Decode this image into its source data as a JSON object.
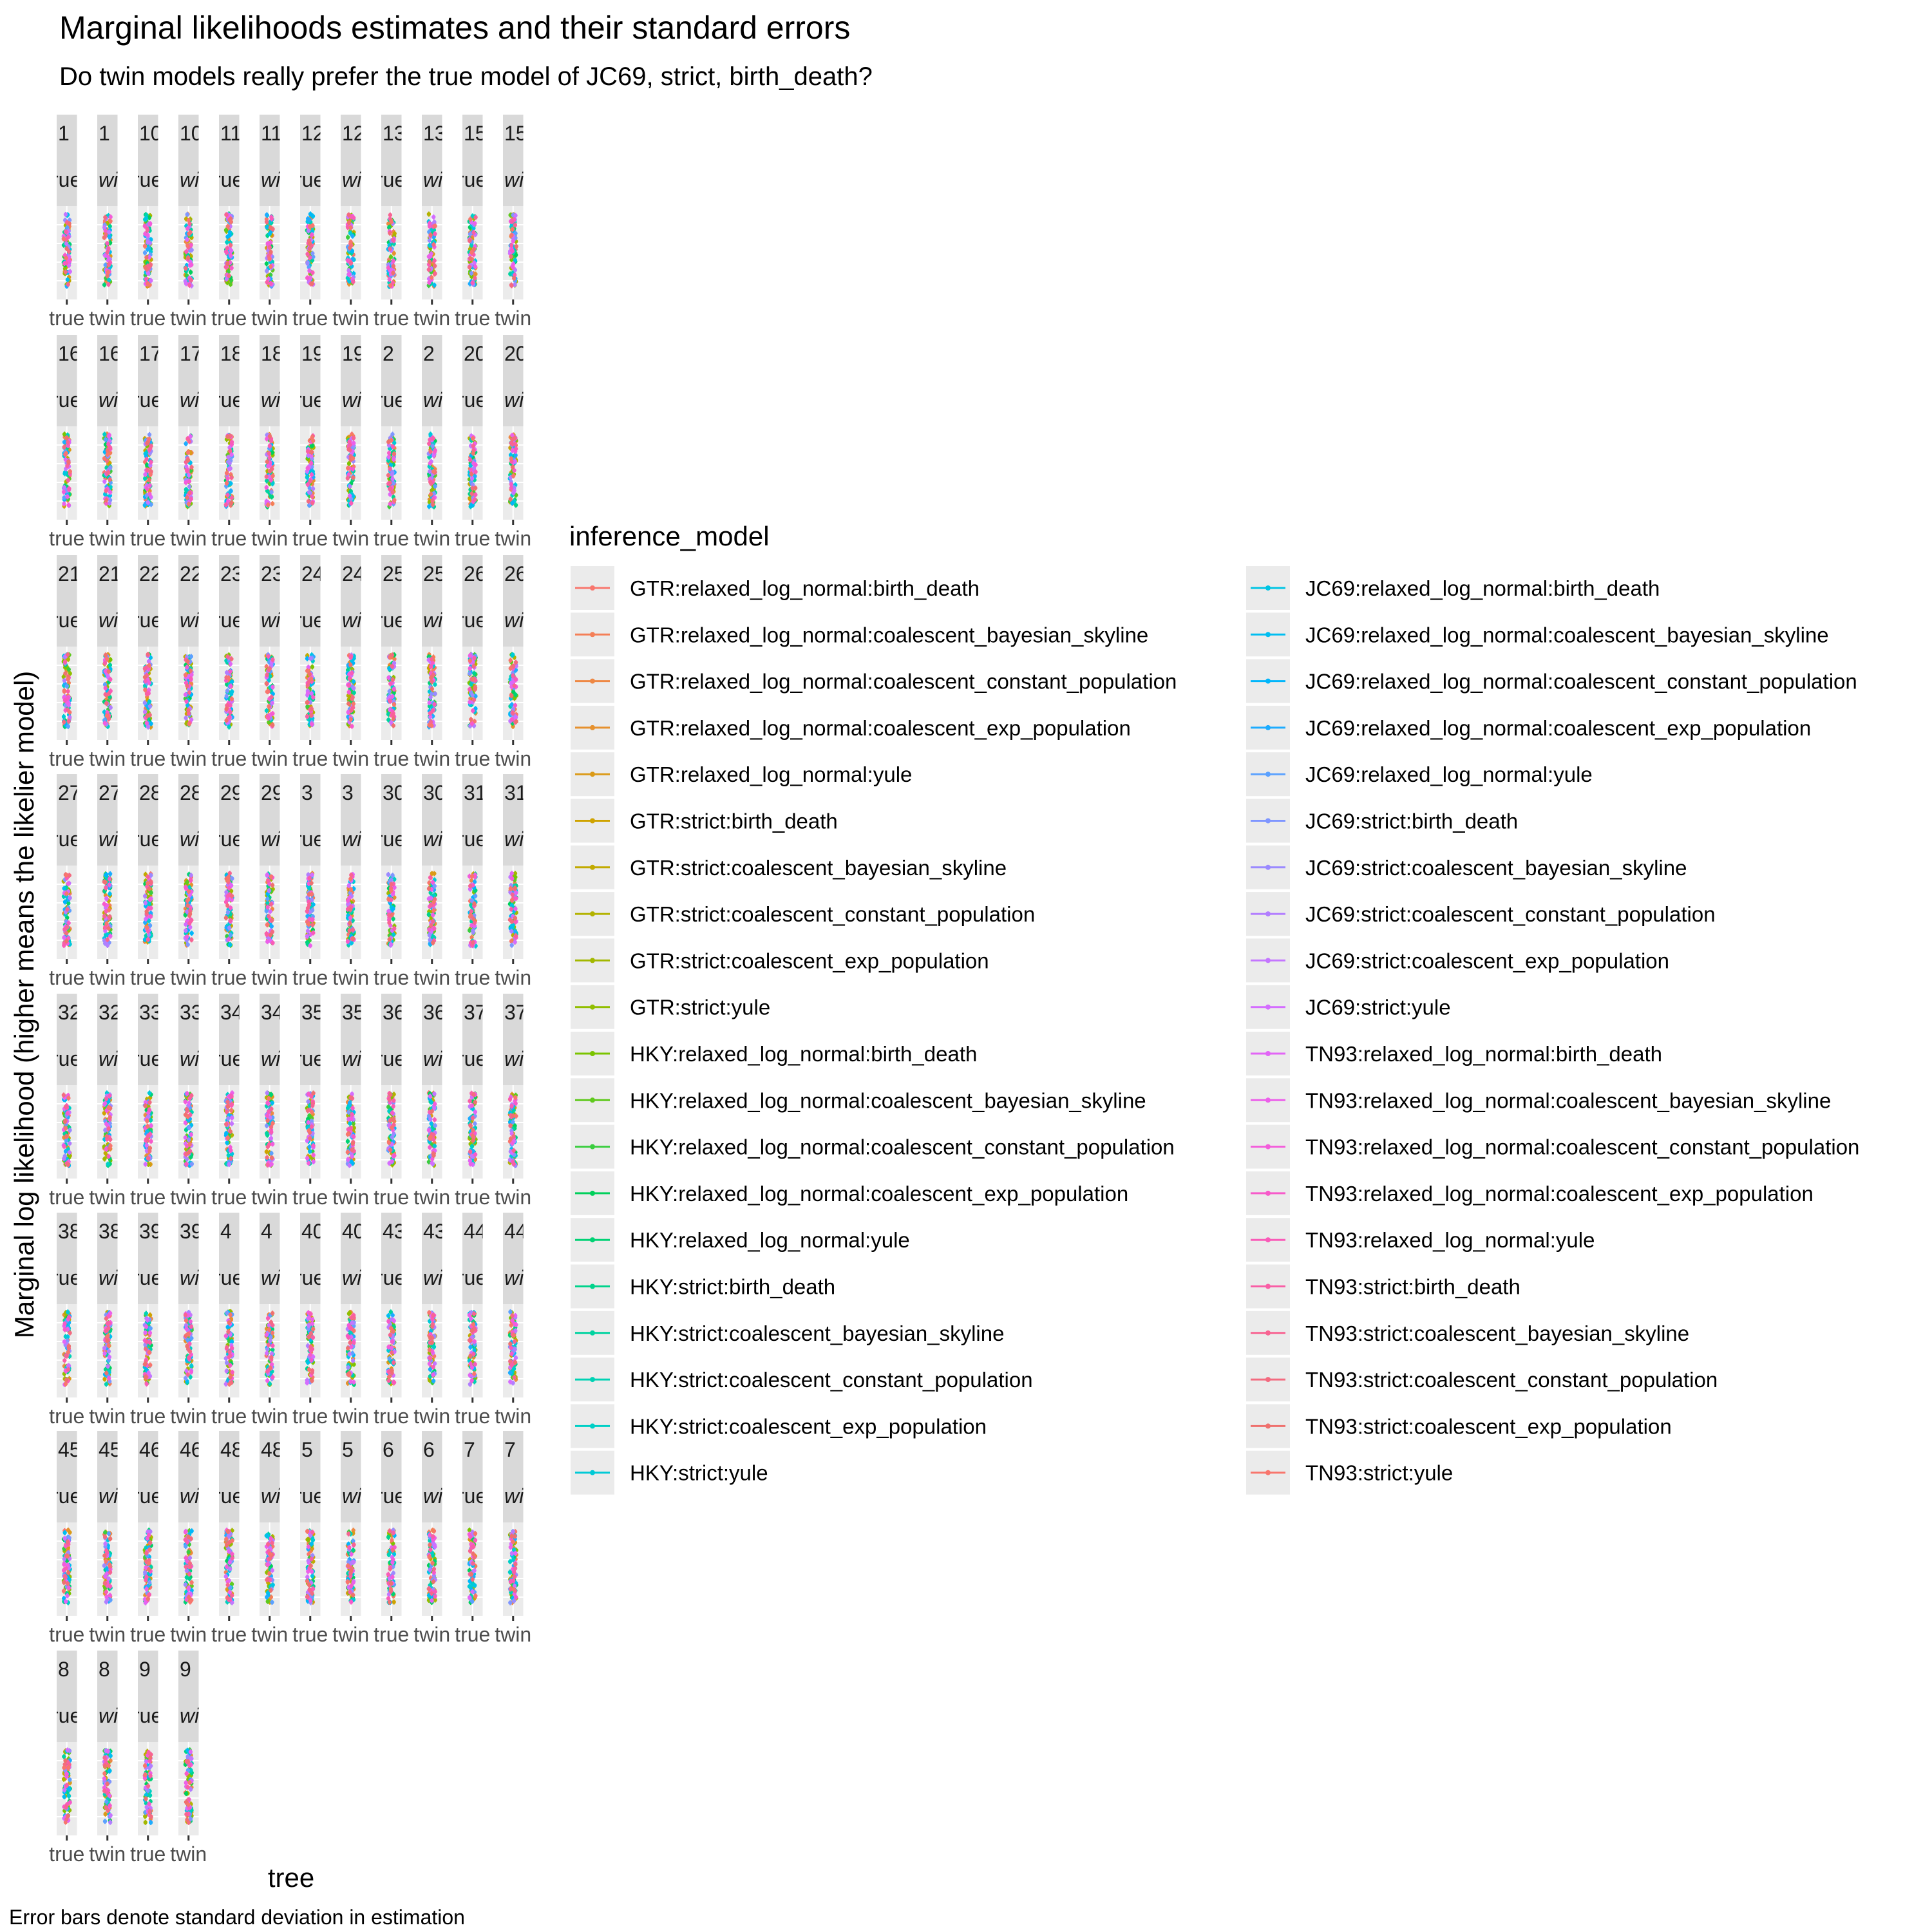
{
  "chart_data": {
    "type": "scatter",
    "title": "Marginal likelihoods estimates and their standard errors",
    "subtitle": "Do twin models really prefer the true model of JC69, strict, birth_death?",
    "xlabel": "tree",
    "ylabel": "Marginal log likelihood (higher means the likelier model)",
    "caption": "Error bars denote standard deviation in estimation",
    "grid": true,
    "legend": {
      "title": "inference_model",
      "placement": "right"
    },
    "x_categories": [
      "true",
      "twin"
    ],
    "facet_labels_shown": [
      "true",
      "twin"
    ],
    "facet_strip_text": [
      "rue",
      "win"
    ],
    "facet_numbers": [
      "1",
      "10",
      "11",
      "12",
      "13",
      "15",
      "16",
      "17",
      "18",
      "19",
      "2",
      "20",
      "21",
      "22",
      "23",
      "24",
      "25",
      "26",
      "27",
      "28",
      "29",
      "3",
      "30",
      "31",
      "32",
      "33",
      "34",
      "35",
      "36",
      "37",
      "38",
      "39",
      "4",
      "40",
      "43",
      "44",
      "45",
      "46",
      "48",
      "5",
      "6",
      "7",
      "8",
      "9"
    ],
    "series_names": [
      "GTR:relaxed_log_normal:birth_death",
      "GTR:relaxed_log_normal:coalescent_bayesian_skyline",
      "GTR:relaxed_log_normal:coalescent_constant_population",
      "GTR:relaxed_log_normal:coalescent_exp_population",
      "GTR:relaxed_log_normal:yule",
      "GTR:strict:birth_death",
      "GTR:strict:coalescent_bayesian_skyline",
      "GTR:strict:coalescent_constant_population",
      "GTR:strict:coalescent_exp_population",
      "GTR:strict:yule",
      "HKY:relaxed_log_normal:birth_death",
      "HKY:relaxed_log_normal:coalescent_bayesian_skyline",
      "HKY:relaxed_log_normal:coalescent_constant_population",
      "HKY:relaxed_log_normal:coalescent_exp_population",
      "HKY:relaxed_log_normal:yule",
      "HKY:strict:birth_death",
      "HKY:strict:coalescent_bayesian_skyline",
      "HKY:strict:coalescent_constant_population",
      "HKY:strict:coalescent_exp_population",
      "HKY:strict:yule",
      "JC69:relaxed_log_normal:birth_death",
      "JC69:relaxed_log_normal:coalescent_bayesian_skyline",
      "JC69:relaxed_log_normal:coalescent_constant_population",
      "JC69:relaxed_log_normal:coalescent_exp_population",
      "JC69:relaxed_log_normal:yule",
      "JC69:strict:birth_death",
      "JC69:strict:coalescent_bayesian_skyline",
      "JC69:strict:coalescent_constant_population",
      "JC69:strict:coalescent_exp_population",
      "JC69:strict:yule",
      "TN93:relaxed_log_normal:birth_death",
      "TN93:relaxed_log_normal:coalescent_bayesian_skyline",
      "TN93:relaxed_log_normal:coalescent_constant_population",
      "TN93:relaxed_log_normal:coalescent_exp_population",
      "TN93:relaxed_log_normal:yule",
      "TN93:strict:birth_death",
      "TN93:strict:coalescent_bayesian_skyline",
      "TN93:strict:coalescent_constant_population",
      "TN93:strict:coalescent_exp_population",
      "TN93:strict:yule"
    ],
    "series_colors": [
      "#F8766D",
      "#F47F57",
      "#EE8844",
      "#E6912E",
      "#DB9A18",
      "#CFA300",
      "#C2AA00",
      "#B3B200",
      "#A3B800",
      "#91BE00",
      "#7BC400",
      "#60C91E",
      "#3ACD3E",
      "#00D05B",
      "#00D274",
      "#00D38B",
      "#00D3A0",
      "#00D2B4",
      "#00CFC6",
      "#00CAD6",
      "#00C5E4",
      "#00BEF1",
      "#00B6FB",
      "#1DACFF",
      "#5BA1FF",
      "#7F96FF",
      "#9B8AFF",
      "#B27EFF",
      "#C476FF",
      "#D46DFF",
      "#E265F6",
      "#EC60EA",
      "#F35CDB",
      "#F75ACA",
      "#F95BB8",
      "#F95EA6",
      "#F76492",
      "#F36B80",
      "#EF716E",
      "#F8766D"
    ]
  }
}
